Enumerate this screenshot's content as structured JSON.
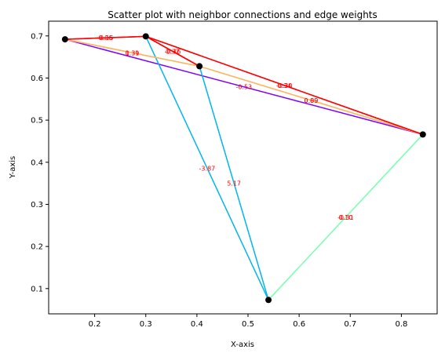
{
  "chart_data": {
    "type": "scatter",
    "title": "Scatter plot with neighbor connections and edge weights",
    "xlabel": "X-axis",
    "ylabel": "Y-axis",
    "xlim": [
      0.11,
      0.87
    ],
    "ylim": [
      0.04,
      0.735
    ],
    "xticks": [
      0.2,
      0.3,
      0.4,
      0.5,
      0.6,
      0.7,
      0.8
    ],
    "yticks": [
      0.1,
      0.2,
      0.3,
      0.4,
      0.5,
      0.6,
      0.7
    ],
    "grid": false,
    "point_color": "#000000",
    "label_color": "#ff0000",
    "points": [
      {
        "x": 0.142,
        "y": 0.692
      },
      {
        "x": 0.3,
        "y": 0.699
      },
      {
        "x": 0.405,
        "y": 0.628
      },
      {
        "x": 0.842,
        "y": 0.466
      },
      {
        "x": 0.54,
        "y": 0.073
      }
    ],
    "edges": [
      {
        "from": 0,
        "to": 3,
        "color": "#7f00ff",
        "label": "-0.53"
      },
      {
        "from": 2,
        "to": 4,
        "color": "#00b5eb",
        "label": "5.17"
      },
      {
        "from": 1,
        "to": 4,
        "color": "#00b5eb",
        "label": "-3.87"
      },
      {
        "from": 4,
        "to": 3,
        "color": "#80ffb4",
        "label": "-0.31"
      },
      {
        "from": 3,
        "to": 4,
        "color": "#80ffb4",
        "label": "0.10"
      },
      {
        "from": 0,
        "to": 2,
        "color": "#ffb360",
        "label": "0.39"
      },
      {
        "from": 2,
        "to": 0,
        "color": "#ffb360",
        "label": "1.31"
      },
      {
        "from": 2,
        "to": 3,
        "color": "#ffb360",
        "label": "0.09"
      },
      {
        "from": 3,
        "to": 2,
        "color": "#ffb360",
        "label": "0.89"
      },
      {
        "from": 0,
        "to": 1,
        "color": "#ff0000",
        "label": "0.06"
      },
      {
        "from": 1,
        "to": 0,
        "color": "#ff0000",
        "label": "-0.15"
      },
      {
        "from": 1,
        "to": 2,
        "color": "#ff0000",
        "label": "0.37"
      },
      {
        "from": 2,
        "to": 1,
        "color": "#ff0000",
        "label": "-0.36"
      },
      {
        "from": 1,
        "to": 3,
        "color": "#ff0000",
        "label": "-0.30"
      },
      {
        "from": 3,
        "to": 1,
        "color": "#ff0000",
        "label": "0.34"
      }
    ]
  }
}
